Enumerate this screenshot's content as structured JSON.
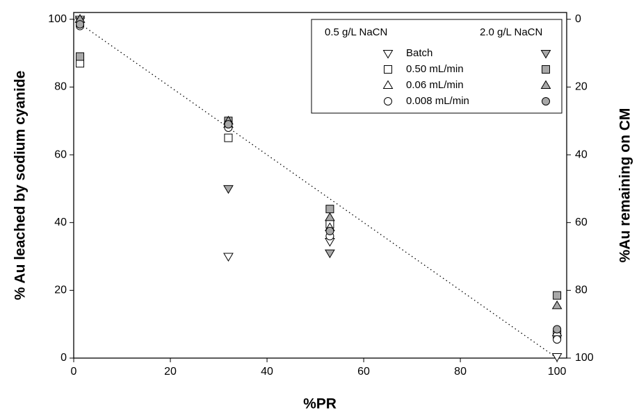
{
  "chart_data": {
    "type": "scatter",
    "x_label": "%PR",
    "y_label": "% Au leached by sodium cyanide",
    "y2_label": "%Au remaining on CM",
    "xlim": [
      0,
      102
    ],
    "xticks": [
      0,
      20,
      40,
      60,
      80,
      100
    ],
    "ylim": [
      0,
      102
    ],
    "yticks": [
      0,
      20,
      40,
      60,
      80,
      100
    ],
    "y2lim": [
      100,
      -2
    ],
    "y2ticks": [
      0,
      20,
      40,
      60,
      80,
      100
    ],
    "legend_position": "upper right",
    "groups": [
      {
        "name": "0.5 g/L NaCN",
        "fill": "#ffffff"
      },
      {
        "name": "2.0 g/L NaCN",
        "fill": "#a8a8a8"
      }
    ],
    "conditions": [
      {
        "name": "Batch",
        "marker": "triangle-down"
      },
      {
        "name": "0.50 mL/min",
        "marker": "square"
      },
      {
        "name": "0.06 mL/min",
        "marker": "triangle-up"
      },
      {
        "name": "0.008 mL/min",
        "marker": "circle"
      }
    ],
    "series": [
      {
        "group": 0,
        "condition": 0,
        "x": [
          1.3,
          32,
          53,
          100
        ],
        "values": [
          100,
          30,
          34.4,
          0.4
        ]
      },
      {
        "group": 1,
        "condition": 0,
        "x": [
          1.3,
          32,
          53
        ],
        "values": [
          99.5,
          50,
          31
        ]
      },
      {
        "group": 0,
        "condition": 1,
        "x": [
          1.3,
          32,
          53,
          100
        ],
        "values": [
          87,
          65,
          39.5,
          7
        ]
      },
      {
        "group": 1,
        "condition": 1,
        "x": [
          1.3,
          32,
          53,
          100
        ],
        "values": [
          89,
          70,
          44,
          18.5
        ]
      },
      {
        "group": 0,
        "condition": 2,
        "x": [
          1.3,
          32,
          53,
          100
        ],
        "values": [
          100,
          69,
          38.5,
          7.5
        ]
      },
      {
        "group": 1,
        "condition": 2,
        "x": [
          1.3,
          32,
          53,
          100
        ],
        "values": [
          100,
          70,
          41.5,
          15.5
        ]
      },
      {
        "group": 0,
        "condition": 3,
        "x": [
          1.3,
          32,
          53,
          100
        ],
        "values": [
          98,
          68,
          36,
          5.5
        ]
      },
      {
        "group": 1,
        "condition": 3,
        "x": [
          1.3,
          32,
          53,
          100
        ],
        "values": [
          98.5,
          69,
          37.5,
          8.5
        ]
      }
    ],
    "trendline": {
      "x": [
        0,
        100
      ],
      "values": [
        100,
        0
      ],
      "color": "#000000"
    }
  }
}
